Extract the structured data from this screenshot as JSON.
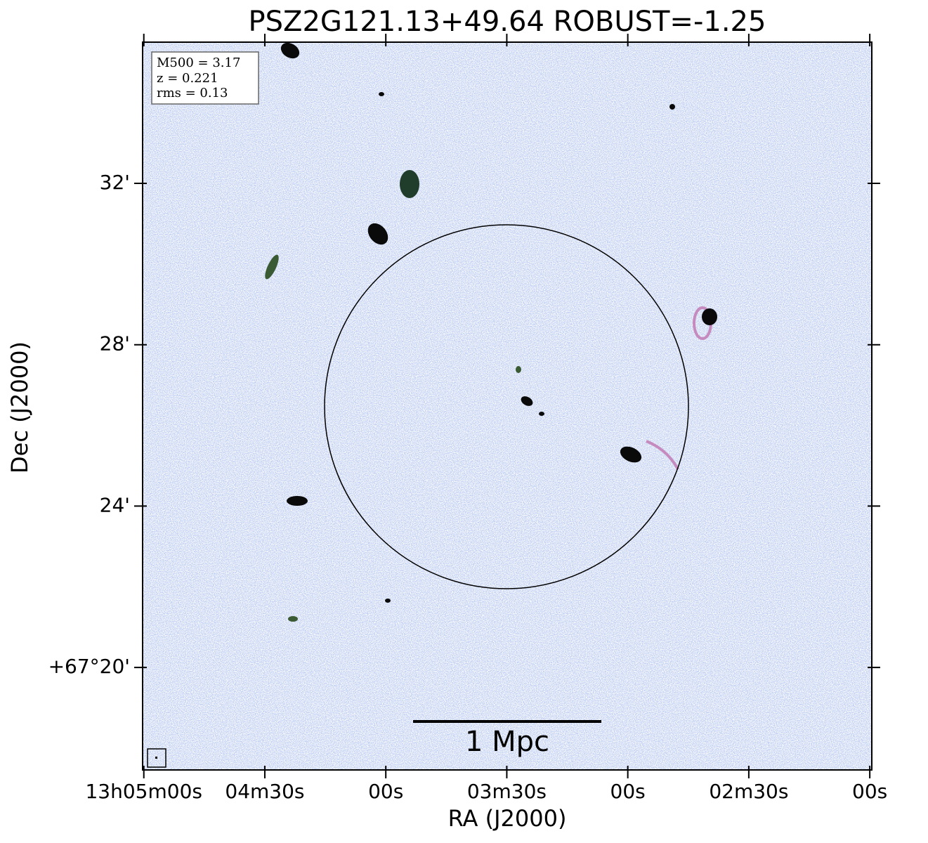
{
  "chart_data": {
    "type": "image",
    "title": "PSZ2G121.13+49.64 ROBUST=-1.25",
    "xlabel": "RA (J2000)",
    "ylabel": "Dec (J2000)",
    "annotations": [
      "M500 = 3.17",
      "z = 0.221",
      "rms = 0.13"
    ],
    "scale_bar_label": "1 Mpc",
    "xlim": [
      47100.3,
      46919.5
    ],
    "ylim": [
      17.46,
      35.5
    ],
    "xticks": [
      {
        "value": 47100,
        "label": "13h05m00s"
      },
      {
        "value": 47070,
        "label": "04m30s"
      },
      {
        "value": 47040,
        "label": "00s"
      },
      {
        "value": 47010,
        "label": "03m30s"
      },
      {
        "value": 46980,
        "label": "00s"
      },
      {
        "value": 46950,
        "label": "02m30s"
      },
      {
        "value": 46920,
        "label": "00s"
      }
    ],
    "yticks": [
      {
        "value": 20,
        "label": "+67°20'"
      },
      {
        "value": 24,
        "label": "24'"
      },
      {
        "value": 28,
        "label": "28'"
      },
      {
        "value": 32,
        "label": "32'"
      }
    ]
  }
}
